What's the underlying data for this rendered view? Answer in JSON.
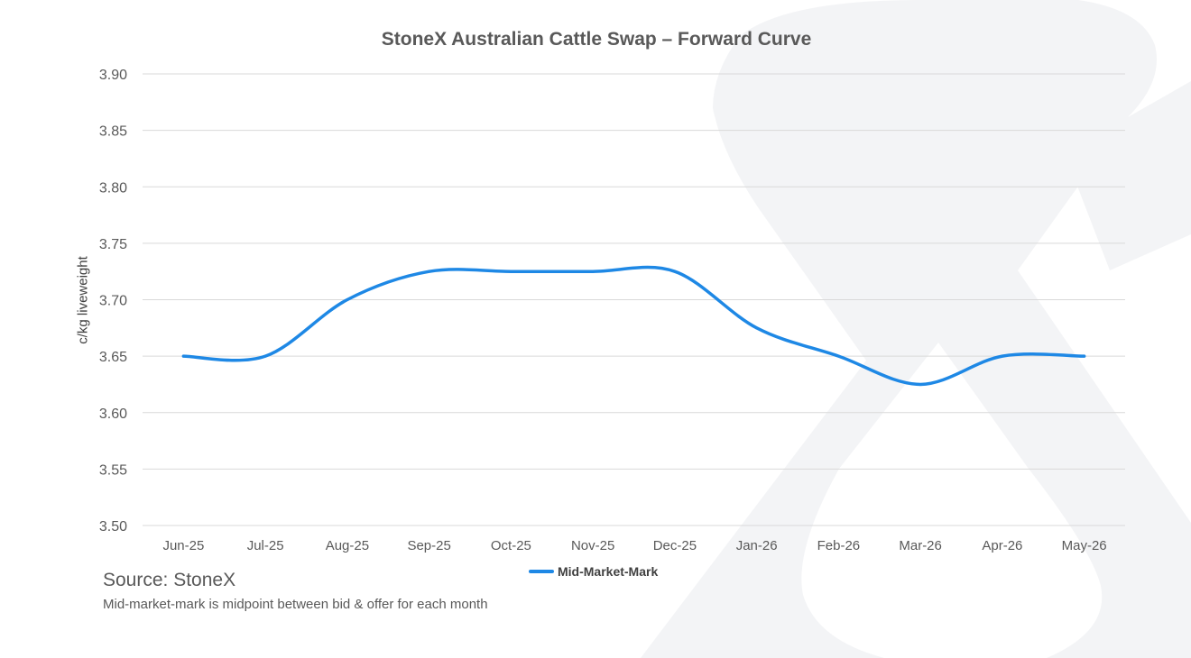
{
  "chart_data": {
    "type": "line",
    "title": "StoneX Australian Cattle Swap – Forward Curve",
    "xlabel": "",
    "ylabel": "c/kg liveweight",
    "categories": [
      "Jun-25",
      "Jul-25",
      "Aug-25",
      "Sep-25",
      "Oct-25",
      "Nov-25",
      "Dec-25",
      "Jan-26",
      "Feb-26",
      "Mar-26",
      "Apr-26",
      "May-26"
    ],
    "series": [
      {
        "name": "Mid-Market-Mark",
        "values": [
          3.65,
          3.65,
          3.7,
          3.725,
          3.725,
          3.725,
          3.725,
          3.675,
          3.65,
          3.625,
          3.65,
          3.65
        ]
      }
    ],
    "ylim": [
      3.5,
      3.9
    ],
    "yticks": [
      "3.50",
      "3.55",
      "3.60",
      "3.65",
      "3.70",
      "3.75",
      "3.80",
      "3.85",
      "3.90"
    ],
    "smooth": true,
    "grid": true,
    "legend_position": "bottom",
    "line_color": "#1E88E5",
    "grid_color": "#D9D9D9"
  },
  "source": "Source: StoneX",
  "footnote": "Mid-market-mark is midpoint between bid & offer for each month"
}
